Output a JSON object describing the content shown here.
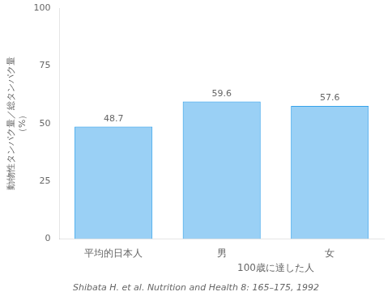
{
  "chart_data": {
    "type": "bar",
    "categories": [
      "平均的日本人",
      "男",
      "女"
    ],
    "values": [
      48.7,
      59.6,
      57.6
    ],
    "data_labels": true,
    "ylabel": [
      "動物性タンパク量／総タンパク量",
      "（%）"
    ],
    "ylim": [
      0,
      100
    ],
    "yticks": [
      0,
      25,
      50,
      75,
      100
    ],
    "grid": false,
    "annotations": [
      "100歳に達した人",
      "Shibata H. et al. Nutrition and Health 8: 165–175, 1992"
    ]
  }
}
